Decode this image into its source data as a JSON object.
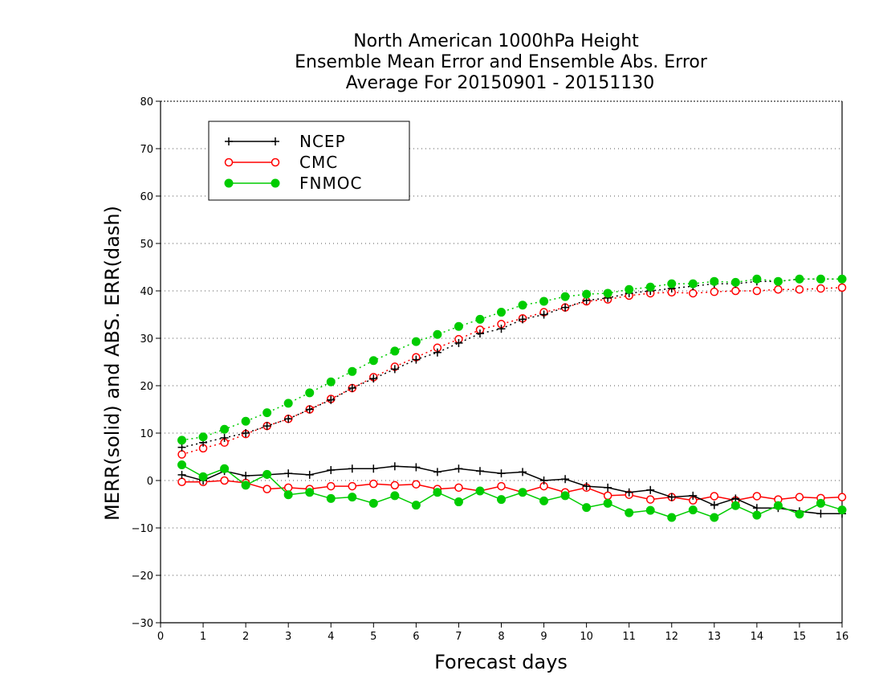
{
  "chart_data": {
    "type": "line",
    "title": [
      "North American 1000hPa Height",
      "Ensemble Mean Error and Ensemble Abs. Error",
      "Average For 20150901 - 20151130"
    ],
    "xlabel": "Forecast days",
    "ylabel": "MERR(solid) and ABS. ERR(dash)",
    "xlim": [
      0,
      16
    ],
    "ylim": [
      -30,
      80
    ],
    "xticks": [
      0,
      1,
      2,
      3,
      4,
      5,
      6,
      7,
      8,
      9,
      10,
      11,
      12,
      13,
      14,
      15,
      16
    ],
    "yticks": [
      -30,
      -20,
      -10,
      0,
      10,
      20,
      30,
      40,
      50,
      60,
      70,
      80
    ],
    "grid": "horizontal dotted",
    "legend_position": "top-left",
    "x": [
      0.5,
      1.0,
      1.5,
      2.0,
      2.5,
      3.0,
      3.5,
      4.0,
      4.5,
      5.0,
      5.5,
      6.0,
      6.5,
      7.0,
      7.5,
      8.0,
      8.5,
      9.0,
      9.5,
      10.0,
      10.5,
      11.0,
      11.5,
      12.0,
      12.5,
      13.0,
      13.5,
      14.0,
      14.5,
      15.0,
      15.5,
      16.0
    ],
    "series": [
      {
        "name": "NCEP",
        "color": "#000000",
        "marker": "plus",
        "merr": [
          1.2,
          0.0,
          2.0,
          1.0,
          1.2,
          1.5,
          1.2,
          2.2,
          2.5,
          2.5,
          3.0,
          2.8,
          1.8,
          2.5,
          2.0,
          1.5,
          1.8,
          0.0,
          0.3,
          -1.2,
          -1.5,
          -2.5,
          -2.0,
          -3.5,
          -3.2,
          -5.2,
          -3.8,
          -5.8,
          -5.8,
          -6.5,
          -7.0,
          -7.0
        ],
        "abs_err": [
          7.0,
          8.0,
          9.0,
          10.0,
          11.5,
          13.0,
          15.0,
          17.0,
          19.5,
          21.5,
          23.5,
          25.5,
          27.0,
          29.0,
          31.0,
          32.0,
          34.0,
          35.0,
          36.5,
          38.0,
          38.5,
          39.5,
          40.0,
          40.5,
          41.0,
          41.5,
          41.5,
          42.0,
          42.0,
          42.5,
          42.5,
          42.5
        ]
      },
      {
        "name": "CMC",
        "color": "#ff0000",
        "marker": "open-circle",
        "merr": [
          -0.3,
          -0.3,
          0.0,
          -0.5,
          -1.8,
          -1.5,
          -1.8,
          -1.2,
          -1.2,
          -0.7,
          -1.0,
          -0.8,
          -1.8,
          -1.5,
          -2.2,
          -1.2,
          -2.5,
          -1.2,
          -2.5,
          -1.5,
          -3.2,
          -3.0,
          -4.0,
          -3.5,
          -4.2,
          -3.3,
          -4.2,
          -3.3,
          -4.0,
          -3.5,
          -3.7,
          -3.5
        ],
        "abs_err": [
          5.5,
          6.8,
          8.0,
          9.8,
          11.5,
          13.0,
          15.0,
          17.2,
          19.5,
          21.8,
          24.0,
          26.0,
          28.0,
          29.8,
          31.8,
          33.0,
          34.2,
          35.5,
          36.5,
          37.8,
          38.2,
          39.0,
          39.5,
          39.7,
          39.5,
          39.8,
          40.0,
          40.0,
          40.3,
          40.3,
          40.5,
          40.7
        ]
      },
      {
        "name": "FNMOC",
        "color": "#00cc00",
        "marker": "filled-circle",
        "merr": [
          3.3,
          0.8,
          2.5,
          -1.0,
          1.3,
          -3.0,
          -2.5,
          -3.8,
          -3.5,
          -4.8,
          -3.2,
          -5.2,
          -2.5,
          -4.5,
          -2.2,
          -4.0,
          -2.5,
          -4.3,
          -3.2,
          -5.7,
          -4.8,
          -6.8,
          -6.3,
          -7.8,
          -6.2,
          -7.8,
          -5.3,
          -7.3,
          -5.3,
          -7.1,
          -4.8,
          -6.2
        ],
        "abs_err": [
          8.5,
          9.2,
          10.8,
          12.5,
          14.3,
          16.3,
          18.5,
          20.8,
          23.0,
          25.3,
          27.3,
          29.3,
          30.8,
          32.5,
          34.0,
          35.5,
          37.0,
          37.8,
          38.8,
          39.3,
          39.5,
          40.3,
          40.8,
          41.5,
          41.5,
          42.0,
          41.8,
          42.5,
          42.0,
          42.5,
          42.5,
          42.5
        ]
      }
    ]
  }
}
